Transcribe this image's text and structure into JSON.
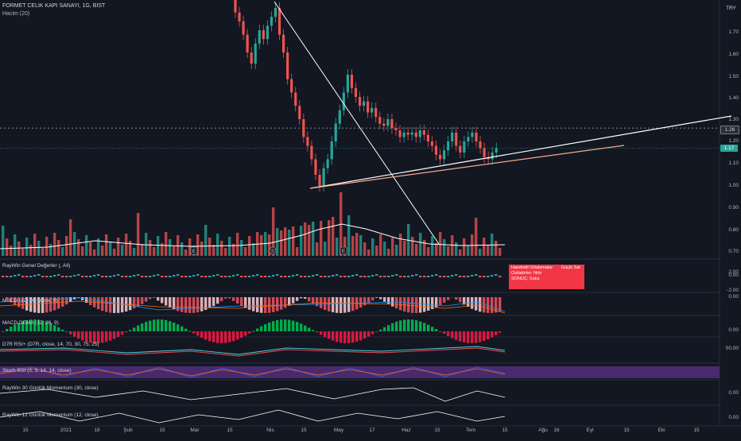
{
  "header": {
    "symbol": "FORMET CELIK KAPI SANAYI, 1G, BIST",
    "volume_label": "Hacim (20)",
    "currency": "TRY"
  },
  "price_axis": [
    "1.70",
    "1.60",
    "1.50",
    "1.40",
    "1.30",
    "1.20",
    "1.10",
    "1.00",
    "0.90",
    "0.80",
    "0.70"
  ],
  "price_tags": {
    "resistance": "1.26",
    "last": "1.17"
  },
  "panes": [
    {
      "label": "RayWin Genel Değerler (, All)",
      "axis": [
        "2.00",
        "0.00",
        "-2.00"
      ]
    },
    {
      "label": "MACD (12, 26, close, 9)",
      "axis": [
        "0.00"
      ]
    },
    {
      "label": "MACD DEMA (12, 26, 9)",
      "axis": [
        "0.00"
      ]
    },
    {
      "label": "D7R RSI+ (D7R, close, 14, 70, 30, 75, 25)",
      "axis": [
        "50.00"
      ]
    },
    {
      "label": "Stoch RSI (3, 3, 14, 14, close)",
      "axis": []
    },
    {
      "label": "RayWin 30 Günlük Momentum (30, close)",
      "axis": [
        "0.00"
      ]
    },
    {
      "label": "RayWin 12 Günlük Momentum (12, close)",
      "axis": [
        "0.00"
      ]
    }
  ],
  "signal_box": {
    "row1_label": "Hareketli Ortalamalar:",
    "row1_value": "Güçlü Sat",
    "row2_label": "Osilatörler:",
    "row2_value": "Nötr",
    "row3_label": "SONUÇ:",
    "row3_value": "Satış"
  },
  "event_markers": [
    "E",
    "S",
    "E"
  ],
  "x_axis": [
    "15",
    "2021",
    "18",
    "Şub",
    "15",
    "Mar",
    "15",
    "Nis",
    "15",
    "May",
    "17",
    "Haz",
    "15",
    "Tem",
    "15",
    "Ağu",
    "16",
    "Eyl",
    "15",
    "Eki",
    "15"
  ],
  "colors": {
    "background": "#131722",
    "up": "#26a69a",
    "down": "#ef5350",
    "trendline": "#ffffff",
    "support": "#f7a98c",
    "stoch_band": "#4a2a6e"
  },
  "chart_data": {
    "type": "candlestick",
    "title": "FORMET CELIK KAPI SANAYI, 1G, BIST",
    "ylim": [
      0.68,
      1.8
    ],
    "closes": [
      1.78,
      1.74,
      1.68,
      1.6,
      1.55,
      1.64,
      1.7,
      1.66,
      1.72,
      1.76,
      1.8,
      1.68,
      1.6,
      1.48,
      1.42,
      1.36,
      1.3,
      1.22,
      1.18,
      1.12,
      1.05,
      1.0,
      1.08,
      1.12,
      1.2,
      1.28,
      1.34,
      1.42,
      1.5,
      1.44,
      1.4,
      1.36,
      1.38,
      1.33,
      1.35,
      1.31,
      1.28,
      1.27,
      1.3,
      1.26,
      1.25,
      1.22,
      1.24,
      1.23,
      1.24,
      1.22,
      1.25,
      1.23,
      1.2,
      1.18,
      1.14,
      1.12,
      1.16,
      1.2,
      1.24,
      1.18,
      1.15,
      1.2,
      1.22,
      1.24,
      1.2,
      1.17,
      1.13,
      1.12,
      1.15,
      1.17
    ],
    "resistance_level": 1.26,
    "last_price": 1.17
  }
}
